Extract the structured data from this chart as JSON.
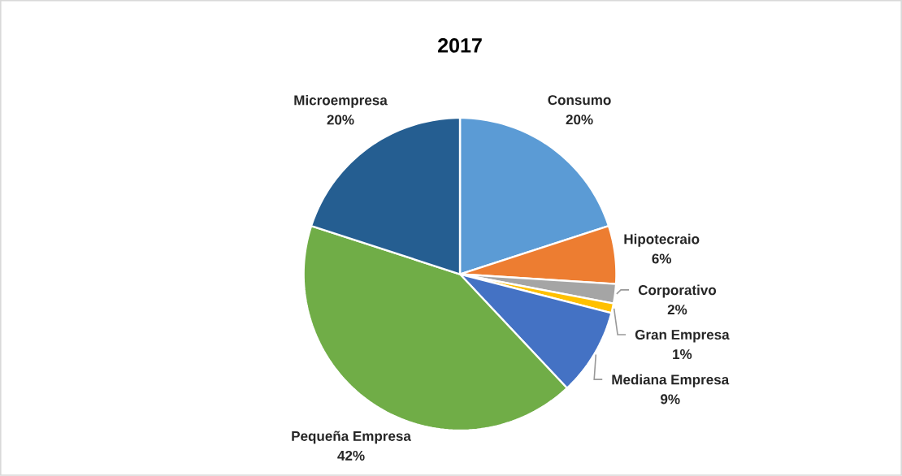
{
  "chart_data": {
    "type": "pie",
    "title": "2017",
    "categories": [
      "Consumo",
      "Hipotecraio",
      "Corporativo",
      "Gran Empresa",
      "Mediana Empresa",
      "Pequeña Empresa",
      "Microempresa"
    ],
    "values": [
      20,
      6,
      2,
      1,
      9,
      42,
      20
    ],
    "value_labels": [
      "20%",
      "6%",
      "2%",
      "1%",
      "9%",
      "42%",
      "20%"
    ],
    "colors": [
      "#5b9bd5",
      "#ed7d31",
      "#a5a5a5",
      "#ffc000",
      "#4472c4",
      "#70ad47",
      "#255e91"
    ]
  }
}
